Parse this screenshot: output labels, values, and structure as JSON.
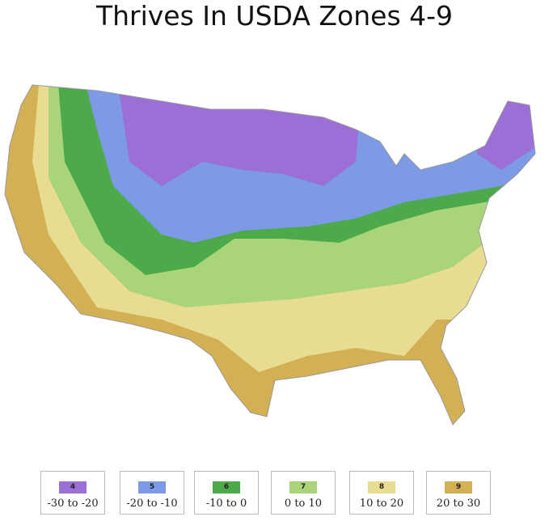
{
  "title": "Thrives In USDA Zones 4-9",
  "legend": [
    {
      "zone": "4",
      "range": "-30 to -20",
      "color": "#9b6fd6"
    },
    {
      "zone": "5",
      "range": "-20 to -10",
      "color": "#7d9ae6"
    },
    {
      "zone": "6",
      "range": "-10 to 0",
      "color": "#4daa4a"
    },
    {
      "zone": "7",
      "range": "0 to 10",
      "color": "#a9d47a"
    },
    {
      "zone": "8",
      "range": "10 to 20",
      "color": "#e8dc90"
    },
    {
      "zone": "9",
      "range": "20 to 30",
      "color": "#d4b055"
    }
  ]
}
